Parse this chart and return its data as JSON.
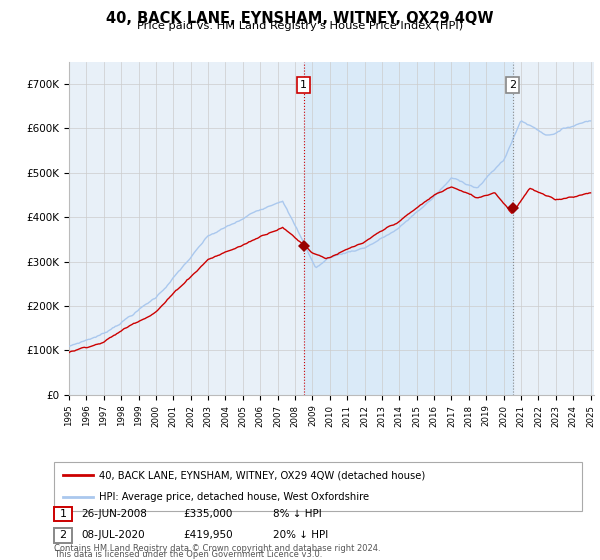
{
  "title": "40, BACK LANE, EYNSHAM, WITNEY, OX29 4QW",
  "subtitle": "Price paid vs. HM Land Registry's House Price Index (HPI)",
  "legend_line1": "40, BACK LANE, EYNSHAM, WITNEY, OX29 4QW (detached house)",
  "legend_line2": "HPI: Average price, detached house, West Oxfordshire",
  "annotation1_date": "26-JUN-2008",
  "annotation1_price": "£335,000",
  "annotation1_note": "8% ↓ HPI",
  "annotation2_date": "08-JUL-2020",
  "annotation2_price": "£419,950",
  "annotation2_note": "20% ↓ HPI",
  "footer_line1": "Contains HM Land Registry data © Crown copyright and database right 2024.",
  "footer_line2": "This data is licensed under the Open Government Licence v3.0.",
  "hpi_color": "#aac8ee",
  "price_color": "#cc0000",
  "marker_color": "#990000",
  "vline1_color": "#cc0000",
  "vline2_color": "#888888",
  "shade_color": "#daeaf8",
  "grid_color": "#cccccc",
  "bg_color": "#f0f4f8",
  "plot_bg": "#e8f0f8",
  "ylim": [
    0,
    750000
  ],
  "yticks": [
    0,
    100000,
    200000,
    300000,
    400000,
    500000,
    600000,
    700000
  ],
  "year_start": 1995,
  "year_end": 2025,
  "sale1_year": 2008.49,
  "sale1_value": 335000,
  "sale2_year": 2020.52,
  "sale2_value": 419950
}
